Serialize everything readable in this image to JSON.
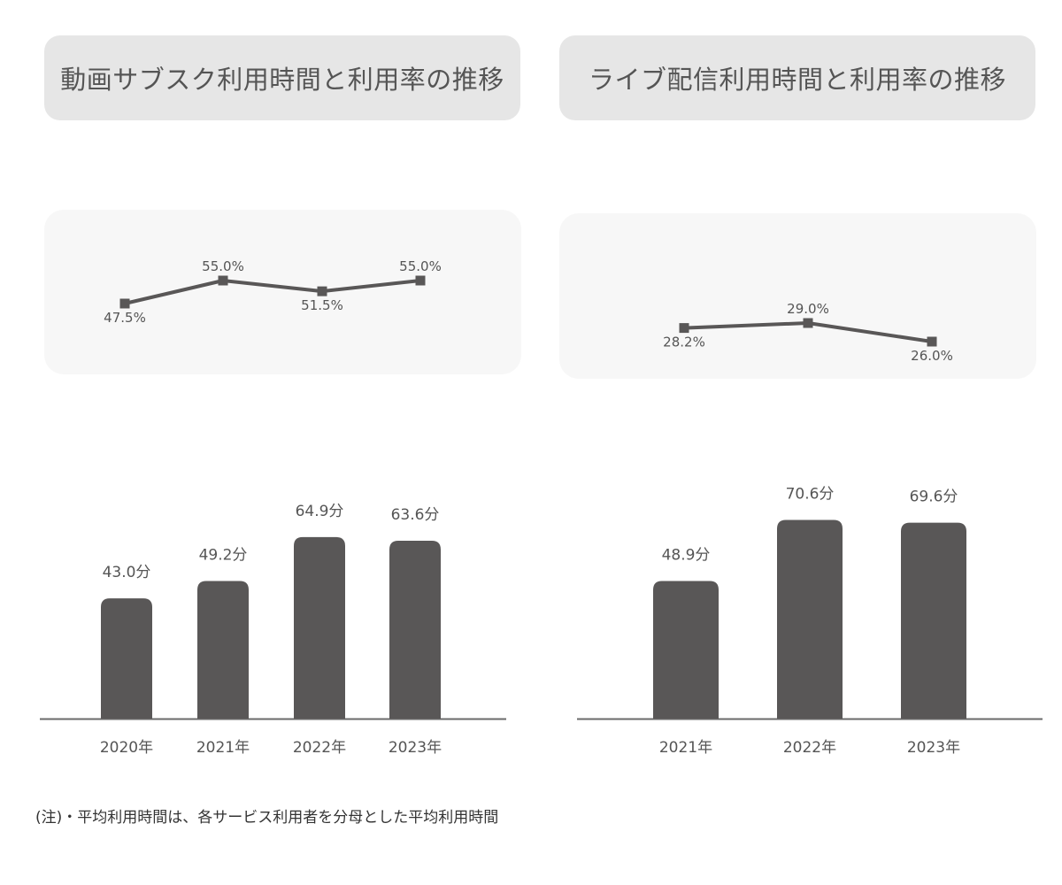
{
  "left_panel": {
    "title": "動画サブスク利用時間と利用率の推移"
  },
  "right_panel": {
    "title": "ライブ配信利用時間と利用率の推移"
  },
  "note": "(注)・平均利用時間は、各サービス利用者を分母とした平均利用時間",
  "colors": {
    "series": "#595757",
    "title_bg": "#e6e6e6",
    "line_box_bg": "#f7f7f7",
    "text": "#555555"
  },
  "chart_data": [
    {
      "type": "line",
      "panel": "left",
      "categories": [
        "2020年",
        "2021年",
        "2022年",
        "2023年"
      ],
      "values": [
        47.5,
        55.0,
        51.5,
        55.0
      ],
      "labels": [
        "47.5%",
        "55.0%",
        "51.5%",
        "55.0%"
      ],
      "ylim": [
        40,
        60
      ]
    },
    {
      "type": "bar",
      "panel": "left",
      "categories": [
        "2020年",
        "2021年",
        "2022年",
        "2023年"
      ],
      "values": [
        43.0,
        49.2,
        64.9,
        63.6
      ],
      "labels": [
        "43.0分",
        "49.2分",
        "64.9分",
        "63.6分"
      ],
      "ylim": [
        0,
        80
      ]
    },
    {
      "type": "line",
      "panel": "right",
      "categories": [
        "2021年",
        "2022年",
        "2023年"
      ],
      "values": [
        28.2,
        29.0,
        26.0
      ],
      "labels": [
        "28.2%",
        "29.0%",
        "26.0%"
      ],
      "ylim": [
        20,
        35
      ]
    },
    {
      "type": "bar",
      "panel": "right",
      "categories": [
        "2021年",
        "2022年",
        "2023年"
      ],
      "values": [
        48.9,
        70.6,
        69.6
      ],
      "labels": [
        "48.9分",
        "70.6分",
        "69.6分"
      ],
      "ylim": [
        0,
        80
      ]
    }
  ]
}
